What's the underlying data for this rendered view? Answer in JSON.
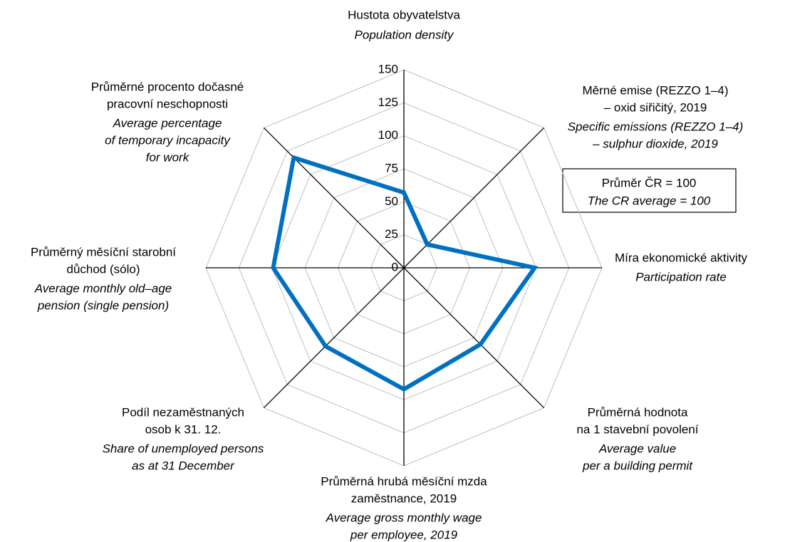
{
  "chart_data": {
    "type": "radar",
    "categories": [
      {
        "name": [
          "Hustota obyvatelstva"
        ],
        "name_en": [
          "Population density"
        ]
      },
      {
        "name": [
          "Měrné emise (REZZO 1–4)",
          "– oxid siřičitý, 2019"
        ],
        "name_en": [
          "Specific emissions (REZZO 1–4)",
          "– sulphur dioxide, 2019"
        ]
      },
      {
        "name": [
          "Míra ekonomické aktivity"
        ],
        "name_en": [
          "Participation rate"
        ]
      },
      {
        "name": [
          "Průměrná hodnota",
          "na 1 stavební povolení"
        ],
        "name_en": [
          "Average value",
          "per a building permit"
        ]
      },
      {
        "name": [
          "Průměrná hrubá měsíční mzda",
          "zaměstnance, 2019"
        ],
        "name_en": [
          "Average gross monthly wage",
          "per employee, 2019"
        ]
      },
      {
        "name": [
          "Podíl nezaměstnaných",
          "osob k 31. 12."
        ],
        "name_en": [
          "Share of unemployed persons",
          "as at 31 December"
        ]
      },
      {
        "name": [
          "Průměrný měsíční starobní",
          "důchod (sólo)"
        ],
        "name_en": [
          "Average monthly old–age",
          "pension (single pension)"
        ]
      },
      {
        "name": [
          "Průměrné procento dočasné",
          "pracovní neschopnosti"
        ],
        "name_en": [
          "Average percentage",
          "of temporary incapacity",
          "for work"
        ]
      }
    ],
    "values": [
      57,
      25,
      99,
      82,
      92,
      84,
      99,
      118
    ],
    "color": "#0070c0",
    "ylim": [
      0,
      150
    ],
    "yticks": [
      0,
      25,
      50,
      75,
      100,
      125,
      150
    ],
    "annotation": [
      "Průměr ČR = 100",
      "The CR average = 100"
    ]
  }
}
